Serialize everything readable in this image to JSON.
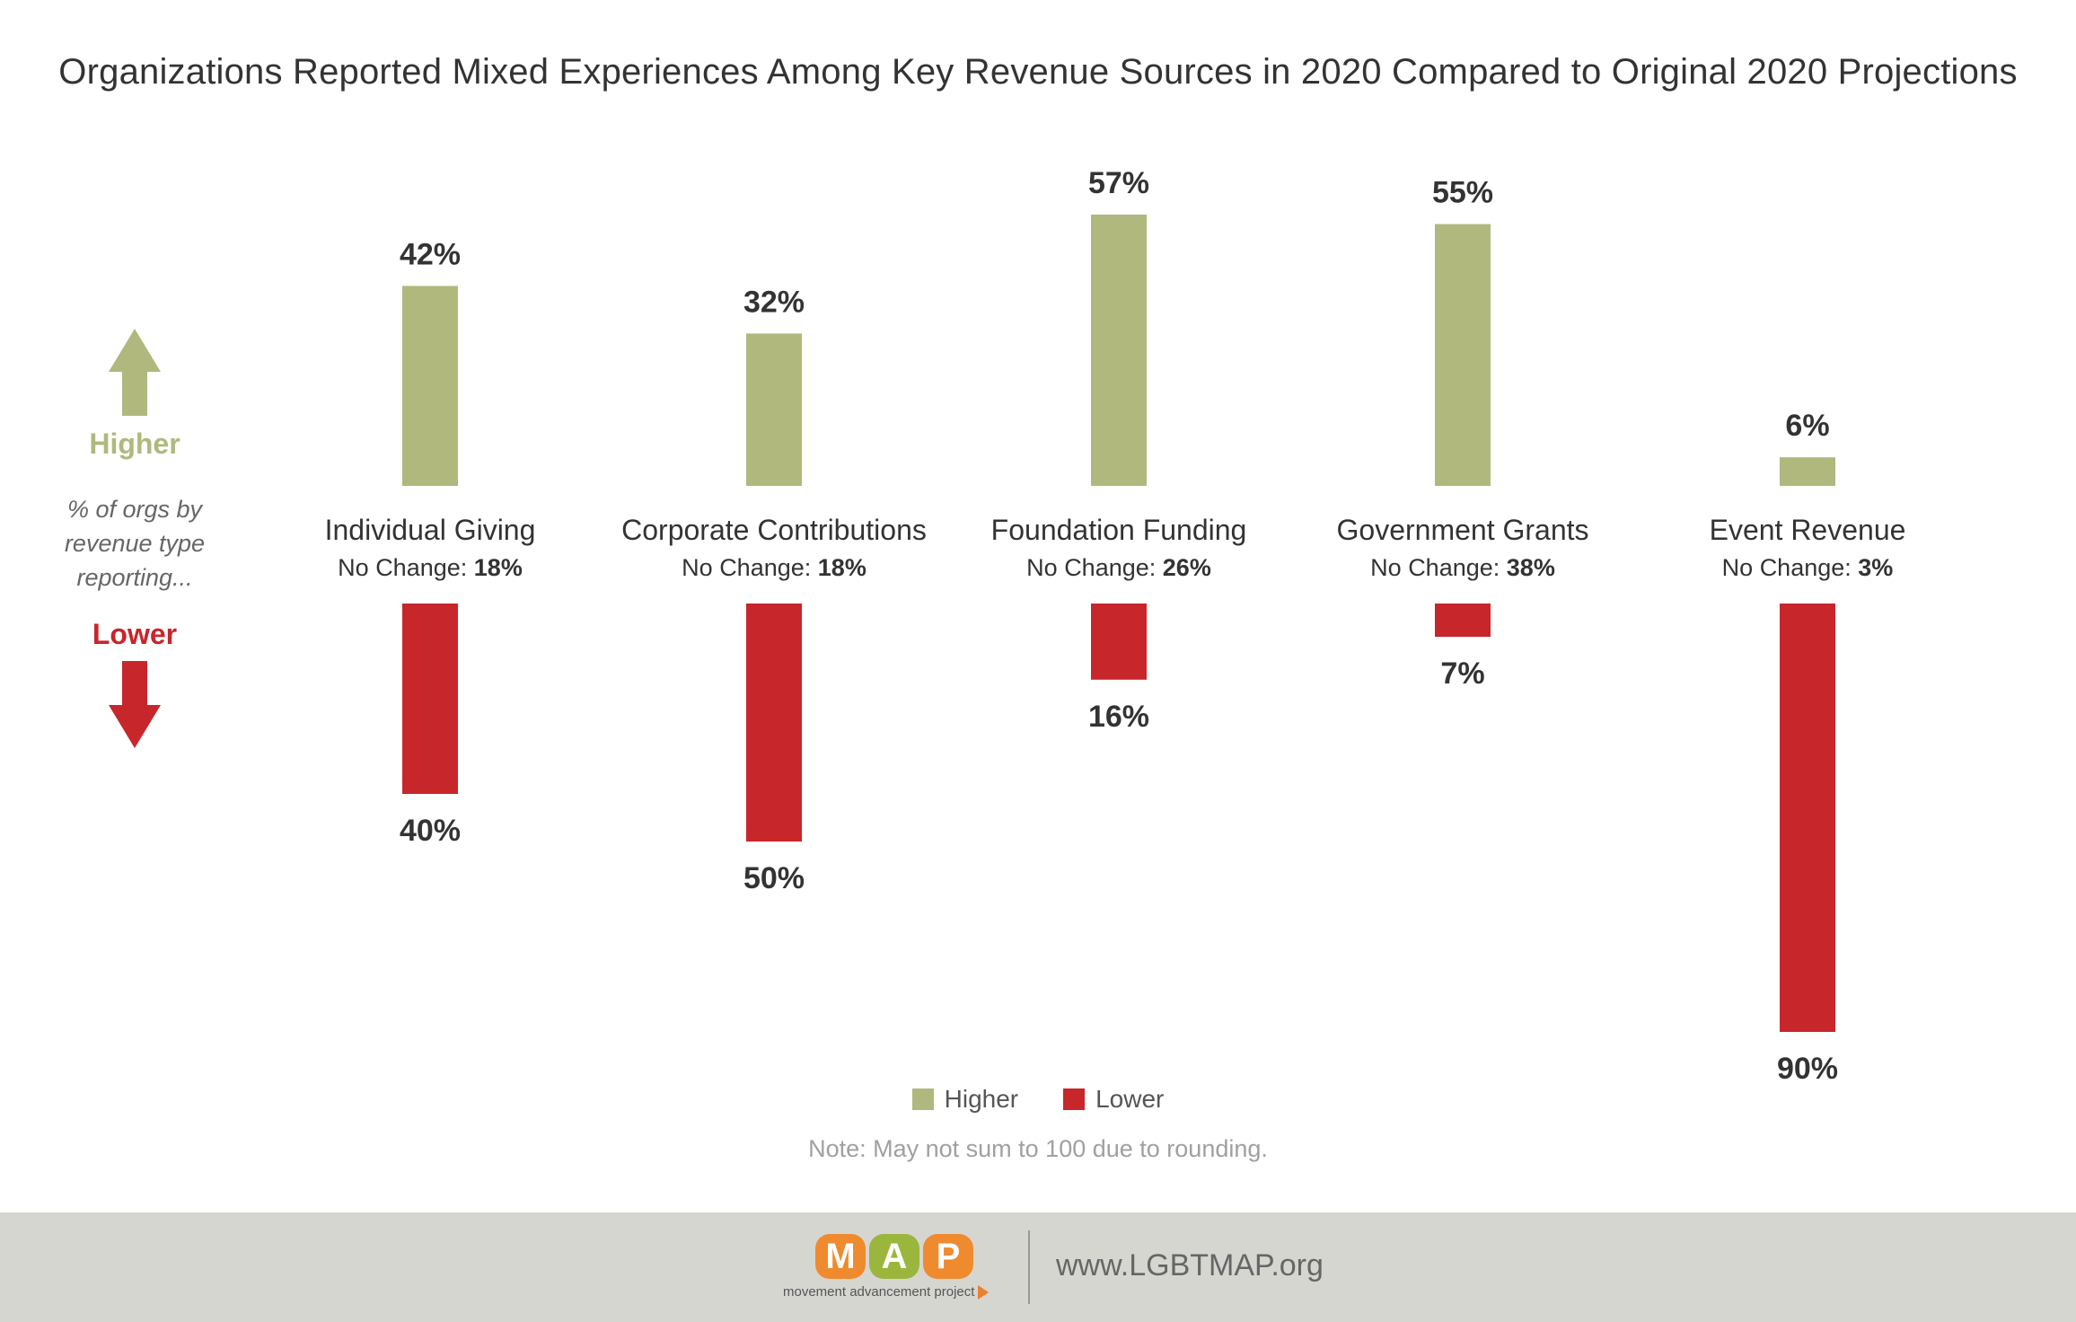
{
  "title": "Organizations Reported Mixed Experiences Among Key Revenue Sources in 2020 Compared to Original 2020 Projections",
  "side": {
    "higher_label": "Higher",
    "desc_line1": "% of orgs by",
    "desc_line2": "revenue type",
    "desc_line3": "reporting...",
    "lower_label": "Lower"
  },
  "colors": {
    "higher": "#b0b87d",
    "lower": "#c7262b"
  },
  "chart_data": {
    "type": "bar",
    "title": "Organizations Reported Mixed Experiences Among Key Revenue Sources in 2020 Compared to Original 2020 Projections",
    "categories": [
      "Individual Giving",
      "Corporate Contributions",
      "Foundation Funding",
      "Government Grants",
      "Event Revenue"
    ],
    "series": [
      {
        "name": "Higher",
        "values": [
          42,
          32,
          57,
          55,
          6
        ],
        "labels": [
          "42%",
          "32%",
          "57%",
          "55%",
          "6%"
        ]
      },
      {
        "name": "Lower",
        "values": [
          40,
          50,
          16,
          7,
          90
        ],
        "labels": [
          "40%",
          "50%",
          "16%",
          "7%",
          "90%"
        ]
      }
    ],
    "no_change_prefix": "No Change:",
    "no_change": [
      "18%",
      "18%",
      "26%",
      "38%",
      "3%"
    ],
    "unit": "%",
    "grid": false,
    "legend_position": "bottom-center"
  },
  "legend": {
    "higher": "Higher",
    "lower": "Lower"
  },
  "note": "Note: May not sum to 100 due to rounding.",
  "footer": {
    "logo_letters": [
      "M",
      "A",
      "P"
    ],
    "logo_colors": [
      "#f08a2f",
      "#9bb63c",
      "#f08a2f"
    ],
    "logo_tagline": "movement advancement project",
    "url": "www.LGBTMAP.org"
  }
}
